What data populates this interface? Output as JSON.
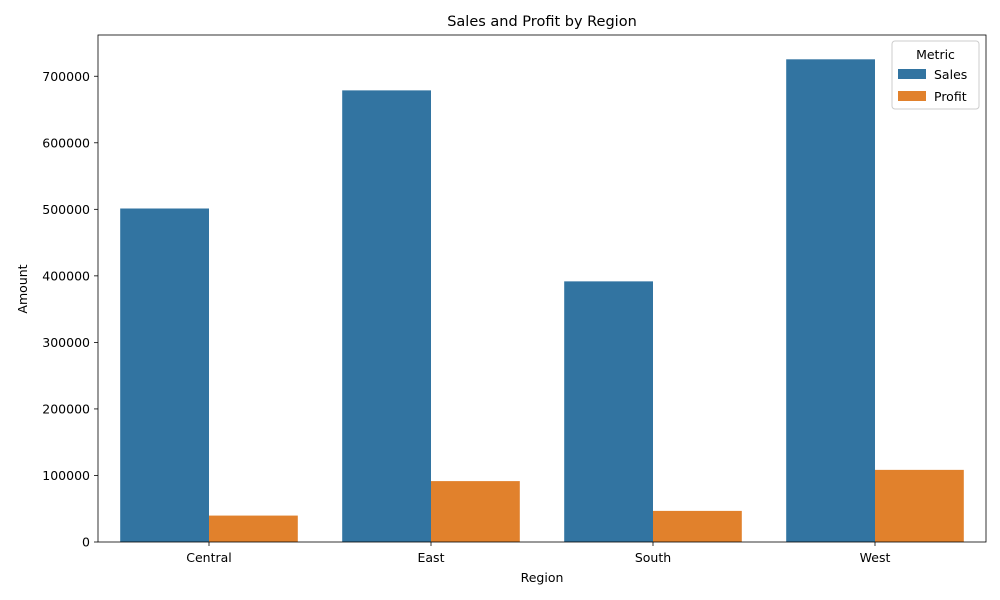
{
  "chart_data": {
    "type": "bar",
    "title": "Sales and Profit by Region",
    "xlabel": "Region",
    "ylabel": "Amount",
    "categories": [
      "Central",
      "East",
      "South",
      "West"
    ],
    "series": [
      {
        "name": "Sales",
        "color": "#3274a1",
        "values": [
          501240,
          678781,
          391722,
          725458
        ]
      },
      {
        "name": "Profit",
        "color": "#e1812c",
        "values": [
          39706,
          91523,
          46749,
          108418
        ]
      }
    ],
    "ylim": [
      0,
      762000
    ],
    "yticks": [
      0,
      100000,
      200000,
      300000,
      400000,
      500000,
      600000,
      700000
    ],
    "legend": {
      "title": "Metric",
      "position": "top-right"
    },
    "grid": false
  }
}
